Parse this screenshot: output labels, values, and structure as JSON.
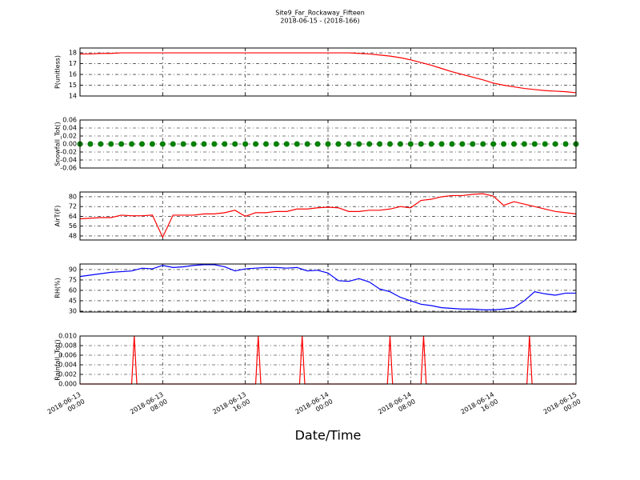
{
  "title": "Site9_Far_Rockaway_Fifteen",
  "subtitle": "2018-06-15 - (2018-166)",
  "xlabel": "Date/Time",
  "xlim": [
    "2018-06-13 00:00",
    "2018-06-15 00:00"
  ],
  "xticks": [
    "2018-06-13 00:00",
    "2018-06-13 08:00",
    "2018-06-13 16:00",
    "2018-06-14 00:00",
    "2018-06-14 08:00",
    "2018-06-14 16:00",
    "2018-06-15 00:00"
  ],
  "x": [
    "2018-06-13 00:00",
    "2018-06-13 01:00",
    "2018-06-13 02:00",
    "2018-06-13 03:00",
    "2018-06-13 04:00",
    "2018-06-13 05:00",
    "2018-06-13 06:00",
    "2018-06-13 07:00",
    "2018-06-13 08:00",
    "2018-06-13 09:00",
    "2018-06-13 10:00",
    "2018-06-13 11:00",
    "2018-06-13 12:00",
    "2018-06-13 13:00",
    "2018-06-13 14:00",
    "2018-06-13 15:00",
    "2018-06-13 16:00",
    "2018-06-13 17:00",
    "2018-06-13 18:00",
    "2018-06-13 19:00",
    "2018-06-13 20:00",
    "2018-06-13 21:00",
    "2018-06-13 22:00",
    "2018-06-13 23:00",
    "2018-06-14 00:00",
    "2018-06-14 01:00",
    "2018-06-14 02:00",
    "2018-06-14 03:00",
    "2018-06-14 04:00",
    "2018-06-14 05:00",
    "2018-06-14 06:00",
    "2018-06-14 07:00",
    "2018-06-14 08:00",
    "2018-06-14 09:00",
    "2018-06-14 10:00",
    "2018-06-14 11:00",
    "2018-06-14 12:00",
    "2018-06-14 13:00",
    "2018-06-14 14:00",
    "2018-06-14 15:00",
    "2018-06-14 16:00",
    "2018-06-14 17:00",
    "2018-06-14 18:00",
    "2018-06-14 19:00",
    "2018-06-14 20:00",
    "2018-06-14 21:00",
    "2018-06-14 22:00",
    "2018-06-14 23:00",
    "2018-06-15 00:00"
  ],
  "chart_data": [
    {
      "type": "line",
      "ylabel": "P(unitless)",
      "color": "#ff0000",
      "grid": true,
      "ylim": [
        14,
        18.45
      ],
      "yticks": [
        14,
        15,
        16,
        17,
        18
      ],
      "values": [
        17.9,
        17.9,
        17.95,
        17.95,
        18,
        18,
        18,
        18,
        18,
        18,
        18,
        18,
        18,
        18,
        18,
        18,
        18,
        18,
        18,
        18,
        18,
        18,
        18,
        18,
        18,
        18,
        18,
        17.95,
        17.9,
        17.8,
        17.7,
        17.55,
        17.35,
        17.1,
        16.85,
        16.55,
        16.25,
        16.0,
        15.75,
        15.5,
        15.2,
        15.0,
        14.85,
        14.7,
        14.6,
        14.5,
        14.45,
        14.4,
        14.3
      ]
    },
    {
      "type": "scatter",
      "ylabel": "Snowfall_Tot()",
      "color": "#008000",
      "grid": true,
      "ylim": [
        -0.06,
        0.06
      ],
      "yticks": [
        -0.06,
        -0.04,
        -0.02,
        {
          "value": 0,
          "label": "0.00"
        },
        0.02,
        0.04,
        0.06
      ],
      "values": [
        0,
        0,
        0,
        0,
        0,
        0,
        0,
        0,
        0,
        0,
        0,
        0,
        0,
        0,
        0,
        0,
        0,
        0,
        0,
        0,
        0,
        0,
        0,
        0,
        0,
        0,
        0,
        0,
        0,
        0,
        0,
        0,
        0,
        0,
        0,
        0,
        0,
        0,
        0,
        0,
        0,
        0,
        0,
        0,
        0,
        0,
        0,
        0,
        0
      ]
    },
    {
      "type": "line",
      "ylabel": "AirT(F)",
      "color": "#ff0000",
      "grid": true,
      "ylim": [
        44.7,
        83.9
      ],
      "yticks": [
        48,
        56,
        64,
        72,
        80
      ],
      "values": [
        62,
        62.5,
        63,
        63,
        65,
        64.5,
        64.5,
        65,
        47,
        65,
        65,
        65,
        66,
        66,
        67,
        69,
        64,
        67,
        67,
        68,
        68,
        70,
        70,
        71,
        71.5,
        71,
        68,
        68,
        69,
        69,
        70,
        72,
        71,
        77,
        78,
        80,
        81,
        81,
        82,
        82.5,
        80.5,
        73,
        76,
        74,
        72,
        70,
        68,
        67,
        66
      ]
    },
    {
      "type": "line",
      "ylabel": "RH(%)",
      "color": "#0000ff",
      "grid": true,
      "ylim": [
        28.8,
        98
      ],
      "yticks": [
        30,
        45,
        60,
        75,
        90
      ],
      "values": [
        80,
        82,
        84,
        86,
        87,
        88,
        92,
        91,
        96,
        93,
        94,
        96,
        97,
        97,
        94,
        88,
        91,
        92,
        93,
        93,
        92,
        93,
        88,
        89,
        85,
        74,
        73,
        77,
        72,
        62,
        58,
        50,
        45,
        40,
        38,
        35,
        34,
        33,
        33,
        32,
        32,
        33,
        35,
        45,
        58,
        55,
        53,
        56,
        56
      ]
    },
    {
      "type": "line",
      "ylabel": "Rainfall_Tot()",
      "color": "#ff0000",
      "grid": true,
      "ylim": [
        0,
        0.01
      ],
      "yticks": [
        {
          "value": 0,
          "label": "0.000"
        },
        {
          "value": 0.002,
          "label": "0.002"
        },
        {
          "value": 0.004,
          "label": "0.004"
        },
        {
          "value": 0.006,
          "label": "0.006"
        },
        {
          "value": 0.008,
          "label": "0.008"
        },
        {
          "value": 0.01,
          "label": "0.010"
        }
      ],
      "x": [
        "2018-06-13 00:00",
        "2018-06-13 05:00",
        "2018-06-13 05:15",
        "2018-06-13 05:30",
        "2018-06-13 17:00",
        "2018-06-13 17:15",
        "2018-06-13 17:30",
        "2018-06-13 21:15",
        "2018-06-13 21:30",
        "2018-06-13 21:45",
        "2018-06-14 05:45",
        "2018-06-14 06:00",
        "2018-06-14 06:15",
        "2018-06-14 09:00",
        "2018-06-14 09:15",
        "2018-06-14 09:30",
        "2018-06-14 19:15",
        "2018-06-14 19:30",
        "2018-06-14 19:45",
        "2018-06-15 00:00"
      ],
      "values": [
        0,
        0,
        0.01,
        0,
        0,
        0.01,
        0,
        0,
        0.01,
        0,
        0,
        0.01,
        0,
        0,
        0.01,
        0,
        0,
        0.01,
        0,
        0
      ]
    }
  ]
}
